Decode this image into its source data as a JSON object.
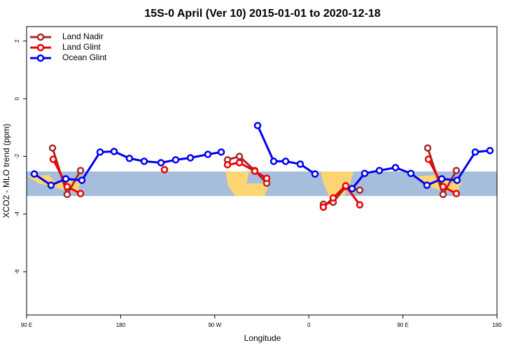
{
  "chart_data": {
    "type": "line",
    "title": "15S-0 April (Ver 10)   2015-01-01 to 2020-12-18",
    "xlabel": "Longitude",
    "ylabel": "XCO2 - MLO trend (ppm)",
    "xlim": [
      90,
      540
    ],
    "xticks": [
      {
        "value": 90,
        "label": "90 E"
      },
      180,
      {
        "value": 270,
        "label": "90 W"
      },
      {
        "value": 360,
        "label": "0"
      },
      {
        "value": 450,
        "label": "90 E"
      },
      {
        "value": 540,
        "label": "180"
      }
    ],
    "ylim": [
      -7.5,
      2.5
    ],
    "yticks": [
      -6,
      -4,
      -2,
      0,
      2
    ],
    "legend": "top-left",
    "series": [
      {
        "name": "Land Nadir",
        "color": "#a52a2a",
        "x": [
          114.8,
          128.8,
          141.6,
          null,
          282.2,
          293.6,
          308.3,
          319.7,
          null,
          373.9,
          383.3,
          395.3,
          408.7,
          null,
          473.7,
          488.4,
          501.1
        ],
        "values": [
          -1.71,
          -3.32,
          -2.49,
          null,
          -2.12,
          -2.0,
          -2.49,
          -2.93,
          null,
          -3.66,
          -3.59,
          -3.05,
          -3.17,
          null,
          -1.71,
          -3.32,
          -2.49
        ]
      },
      {
        "name": "Land Glint",
        "color": "#ee0000",
        "x": [
          115.4,
          128.8,
          141.6,
          null,
          221.9,
          null,
          282.2,
          293.6,
          308.3,
          319.7,
          null,
          373.9,
          383.3,
          395.3,
          408.7,
          null,
          474.4,
          488.4,
          501.1
        ],
        "values": [
          -2.1,
          -3.05,
          -3.29,
          null,
          -2.46,
          null,
          -2.29,
          -2.22,
          -2.51,
          -2.76,
          null,
          -3.76,
          -3.44,
          -3.02,
          -3.68,
          null,
          -2.1,
          -3.05,
          -3.29
        ]
      },
      {
        "name": "Ocean Glint",
        "color": "#0000ee",
        "x": [
          97.4,
          113.4,
          127.5,
          142.9,
          160.3,
          173.7,
          188.4,
          202.5,
          218.6,
          232.6,
          246.7,
          263.4,
          276.2,
          null,
          311,
          326.4,
          337.8,
          351.8,
          365.9,
          null,
          401.4,
          413.4,
          427.5,
          442.9,
          457.6,
          473,
          487.1,
          501.8,
          519.2,
          533.3
        ],
        "values": [
          -2.61,
          -3.0,
          -2.78,
          -2.83,
          -1.85,
          -1.83,
          -2.07,
          -2.17,
          -2.22,
          -2.12,
          -2.05,
          -1.93,
          -1.85,
          null,
          -0.93,
          -2.17,
          -2.17,
          -2.27,
          -2.61,
          null,
          -3.12,
          -2.59,
          -2.49,
          -2.39,
          -2.59,
          -3.0,
          -2.78,
          -2.83,
          -1.85,
          -1.8
        ]
      }
    ]
  }
}
